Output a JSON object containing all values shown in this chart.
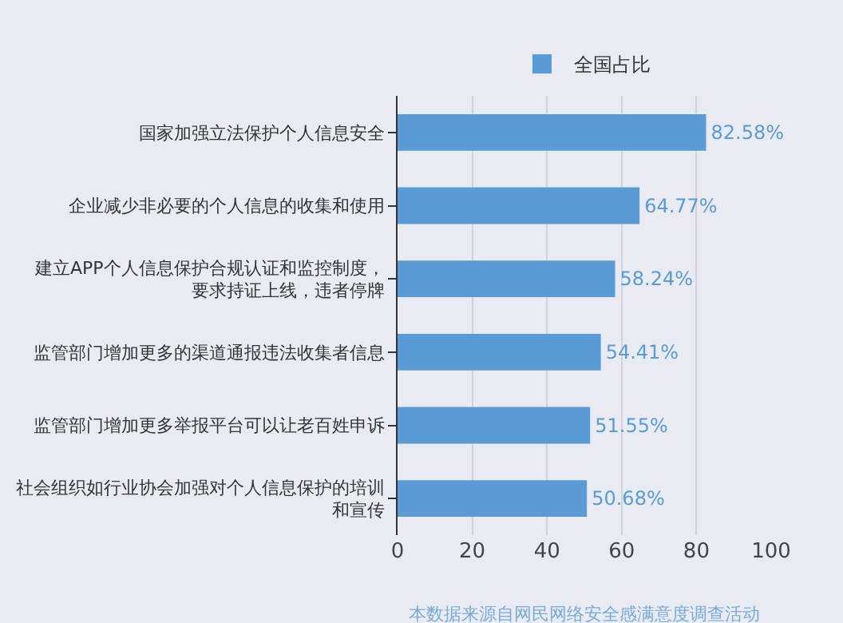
{
  "chart_data": {
    "type": "bar",
    "orientation": "horizontal",
    "categories": [
      "国家加强立法保护个人信息安全",
      "企业减少非必要的个人信息的收集和使用",
      "建立APP个人信息保护合规认证和监控制度，要求持证上线，违者停牌",
      "监管部门增加更多的渠道通报违法收集者信息",
      "监管部门增加更多举报平台可以让老百姓申诉",
      "社会组织如行业协会加强对个人信息保护的培训和宣传"
    ],
    "series": [
      {
        "name": "全国占比",
        "color": "#5b9bd5",
        "values": [
          82.58,
          64.77,
          58.24,
          54.41,
          51.55,
          50.68
        ],
        "value_labels": [
          "82.58%",
          "64.77%",
          "58.24%",
          "54.41%",
          "51.55%",
          "50.68%"
        ]
      }
    ],
    "xlim": [
      0,
      100
    ],
    "xticks": [
      0,
      20,
      40,
      60,
      80,
      100
    ],
    "grid": "x",
    "legend": "top",
    "annotations": [
      "本数据来源自网民网络安全感满意度调查活动"
    ]
  }
}
